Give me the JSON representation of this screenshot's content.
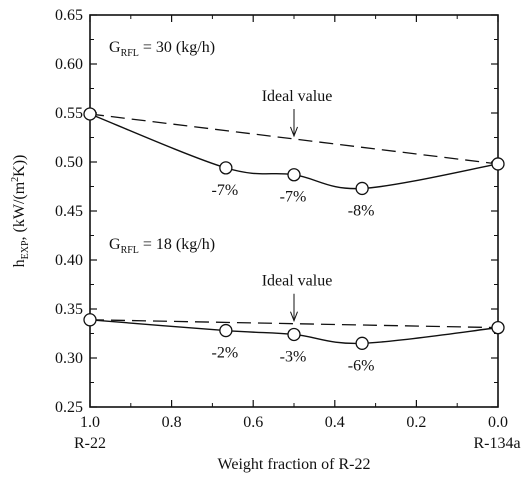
{
  "chart_data": {
    "type": "line",
    "xlabel": "Weight fraction of R-22",
    "ylabel": {
      "main": "h",
      "sub": "EXP",
      "after_sub": ", (kW/(m",
      "sup": "2",
      "end": "K))"
    },
    "xlim": [
      1.0,
      0.0
    ],
    "ylim": [
      0.25,
      0.65
    ],
    "x_ticks": [
      "1.0",
      "0.8",
      "0.6",
      "0.4",
      "0.2",
      "0.0"
    ],
    "y_ticks": [
      "0.25",
      "0.30",
      "0.35",
      "0.40",
      "0.45",
      "0.50",
      "0.55",
      "0.60",
      "0.65"
    ],
    "x_end_labels": {
      "left": "R-22",
      "right": "R-134a"
    },
    "grid": false,
    "series": [
      {
        "condition": {
          "main": "G",
          "sub": "RFL",
          "rest": " = 30 (kg/h)"
        },
        "x": [
          1.0,
          0.667,
          0.5,
          0.333,
          0.0
        ],
        "y": [
          0.549,
          0.494,
          0.487,
          0.473,
          0.498
        ],
        "point_labels": [
          "",
          "-7%",
          "-7%",
          "-8%",
          ""
        ],
        "ideal": {
          "x": [
            1.0,
            0.0
          ],
          "y": [
            0.549,
            0.498
          ],
          "label": "Ideal value",
          "arrow_x": 0.5
        }
      },
      {
        "condition": {
          "main": "G",
          "sub": "RFL",
          "rest": " = 18 (kg/h)"
        },
        "x": [
          1.0,
          0.667,
          0.5,
          0.333,
          0.0
        ],
        "y": [
          0.339,
          0.328,
          0.324,
          0.315,
          0.331
        ],
        "point_labels": [
          "",
          "-2%",
          "-3%",
          "-6%",
          ""
        ],
        "ideal": {
          "x": [
            1.0,
            0.0
          ],
          "y": [
            0.339,
            0.331
          ],
          "label": "Ideal value",
          "arrow_x": 0.5
        }
      }
    ]
  }
}
